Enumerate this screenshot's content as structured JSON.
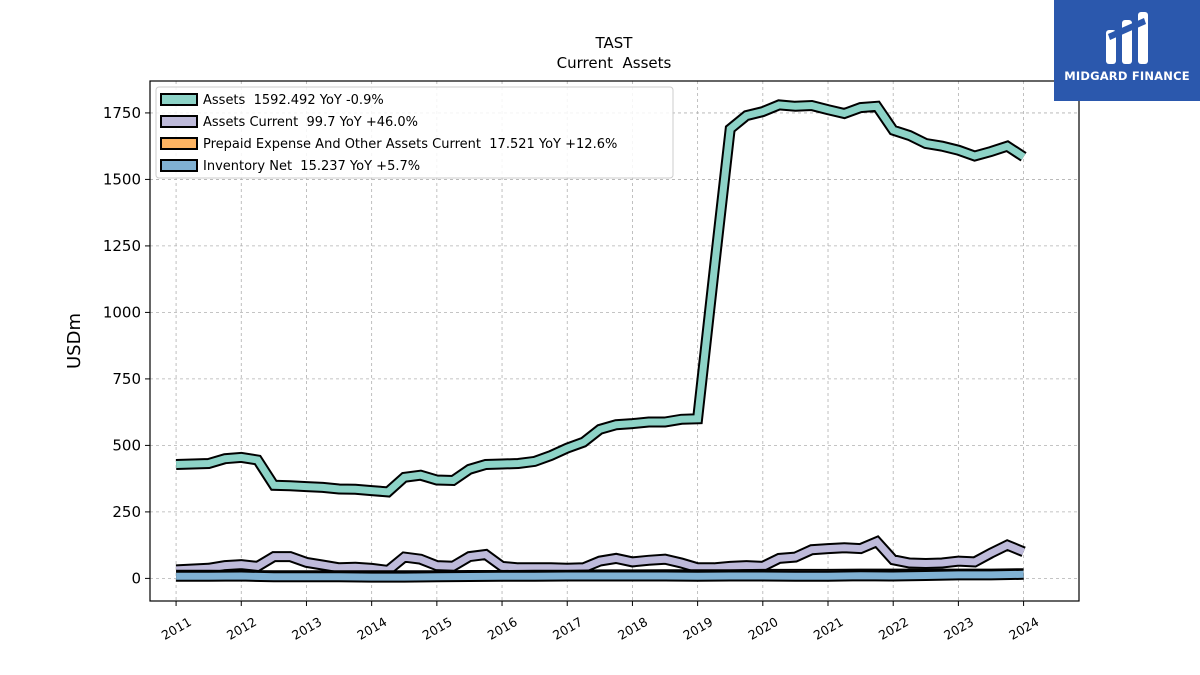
{
  "brand": {
    "name": "MIDGARD FINANCE"
  },
  "chart_data": {
    "type": "line",
    "title": "TAST",
    "subtitle": "Current  Assets",
    "ylabel": "USDm",
    "xlabel": "",
    "ylim": [
      -85,
      1870
    ],
    "xlim": [
      2010.6,
      2024.85
    ],
    "yticks": [
      0,
      250,
      500,
      750,
      1000,
      1250,
      1500,
      1750
    ],
    "xticks": [
      2011,
      2012,
      2013,
      2014,
      2015,
      2016,
      2017,
      2018,
      2019,
      2020,
      2021,
      2022,
      2023,
      2024
    ],
    "grid": true,
    "legend_position": "top-left",
    "series": [
      {
        "name": "Assets",
        "legend": "Assets  1592.492 YoY -0.9%",
        "color": "#8dd3c7",
        "x": [
          2011.0,
          2011.5,
          2011.75,
          2012.0,
          2012.25,
          2012.5,
          2012.75,
          2013.0,
          2013.25,
          2013.5,
          2013.75,
          2014.0,
          2014.25,
          2014.5,
          2014.75,
          2015.0,
          2015.25,
          2015.5,
          2015.75,
          2016.0,
          2016.25,
          2016.5,
          2016.75,
          2017.0,
          2017.25,
          2017.5,
          2017.75,
          2018.0,
          2018.25,
          2018.5,
          2018.75,
          2019.0,
          2019.25,
          2019.5,
          2019.75,
          2020.0,
          2020.25,
          2020.5,
          2020.75,
          2021.0,
          2021.25,
          2021.5,
          2021.75,
          2022.0,
          2022.25,
          2022.5,
          2022.75,
          2023.0,
          2023.25,
          2023.5,
          2023.75,
          2024.0
        ],
        "values": [
          428,
          432,
          450,
          455,
          445,
          350,
          348,
          345,
          342,
          336,
          335,
          330,
          325,
          380,
          388,
          370,
          368,
          410,
          428,
          430,
          432,
          440,
          462,
          490,
          512,
          560,
          578,
          582,
          588,
          588,
          598,
          600,
          1150,
          1690,
          1740,
          1755,
          1780,
          1775,
          1778,
          1762,
          1748,
          1770,
          1775,
          1685,
          1665,
          1635,
          1625,
          1610,
          1588,
          1605,
          1625,
          1585
        ]
      },
      {
        "name": "Assets Current",
        "legend": "Assets Current  99.7 YoY +46.0%",
        "color": "#bebada",
        "x": [
          2011.0,
          2011.5,
          2011.75,
          2012.0,
          2012.25,
          2012.5,
          2012.75,
          2013.0,
          2013.25,
          2013.5,
          2013.75,
          2014.0,
          2014.25,
          2014.5,
          2014.75,
          2015.0,
          2015.25,
          2015.5,
          2015.75,
          2016.0,
          2016.25,
          2016.5,
          2016.75,
          2017.0,
          2017.25,
          2017.5,
          2017.75,
          2018.0,
          2018.25,
          2018.5,
          2018.75,
          2019.0,
          2019.25,
          2019.5,
          2019.75,
          2020.0,
          2020.25,
          2020.5,
          2020.75,
          2021.0,
          2021.25,
          2021.5,
          2021.75,
          2022.0,
          2022.25,
          2022.5,
          2022.75,
          2023.0,
          2023.25,
          2023.5,
          2023.75,
          2024.0
        ],
        "values": [
          32,
          38,
          48,
          52,
          45,
          82,
          82,
          60,
          50,
          40,
          42,
          38,
          30,
          80,
          72,
          48,
          46,
          82,
          90,
          45,
          40,
          40,
          40,
          38,
          40,
          65,
          75,
          62,
          68,
          72,
          58,
          40,
          40,
          45,
          48,
          45,
          75,
          80,
          108,
          112,
          115,
          112,
          138,
          70,
          58,
          56,
          58,
          65,
          62,
          95,
          125,
          100
        ]
      },
      {
        "name": "Prepaid Expense And Other Assets Current",
        "legend": "Prepaid Expense And Other Assets Current  17.521 YoY +12.6%",
        "color": "#fdb462",
        "x": [
          2011.0,
          2011.5,
          2012.0,
          2012.5,
          2013.0,
          2013.5,
          2014.0,
          2014.5,
          2015.0,
          2015.5,
          2016.0,
          2016.5,
          2017.0,
          2017.5,
          2018.0,
          2018.5,
          2019.0,
          2019.5,
          2020.0,
          2020.5,
          2021.0,
          2021.5,
          2022.0,
          2022.5,
          2023.0,
          2023.5,
          2024.0
        ],
        "values": [
          12,
          12,
          11,
          10,
          10,
          10,
          10,
          10,
          10,
          11,
          11,
          12,
          12,
          13,
          13,
          14,
          14,
          14,
          15,
          15,
          15,
          16,
          16,
          16,
          16,
          16,
          17.5
        ]
      },
      {
        "name": "Inventory Net",
        "legend": "Inventory Net  15.237 YoY +5.7%",
        "color": "#80b1d3",
        "x": [
          2011.0,
          2011.5,
          2012.0,
          2012.5,
          2013.0,
          2013.5,
          2014.0,
          2014.5,
          2015.0,
          2015.5,
          2016.0,
          2016.5,
          2017.0,
          2017.5,
          2018.0,
          2018.5,
          2019.0,
          2019.5,
          2020.0,
          2020.5,
          2021.0,
          2021.5,
          2022.0,
          2022.5,
          2023.0,
          2023.5,
          2024.0
        ],
        "values": [
          8,
          8,
          9,
          6,
          6,
          6,
          5,
          5,
          6,
          7,
          8,
          8,
          9,
          9,
          9,
          9,
          8,
          9,
          9,
          8,
          8,
          10,
          9,
          11,
          13,
          13,
          15.2
        ]
      }
    ]
  }
}
